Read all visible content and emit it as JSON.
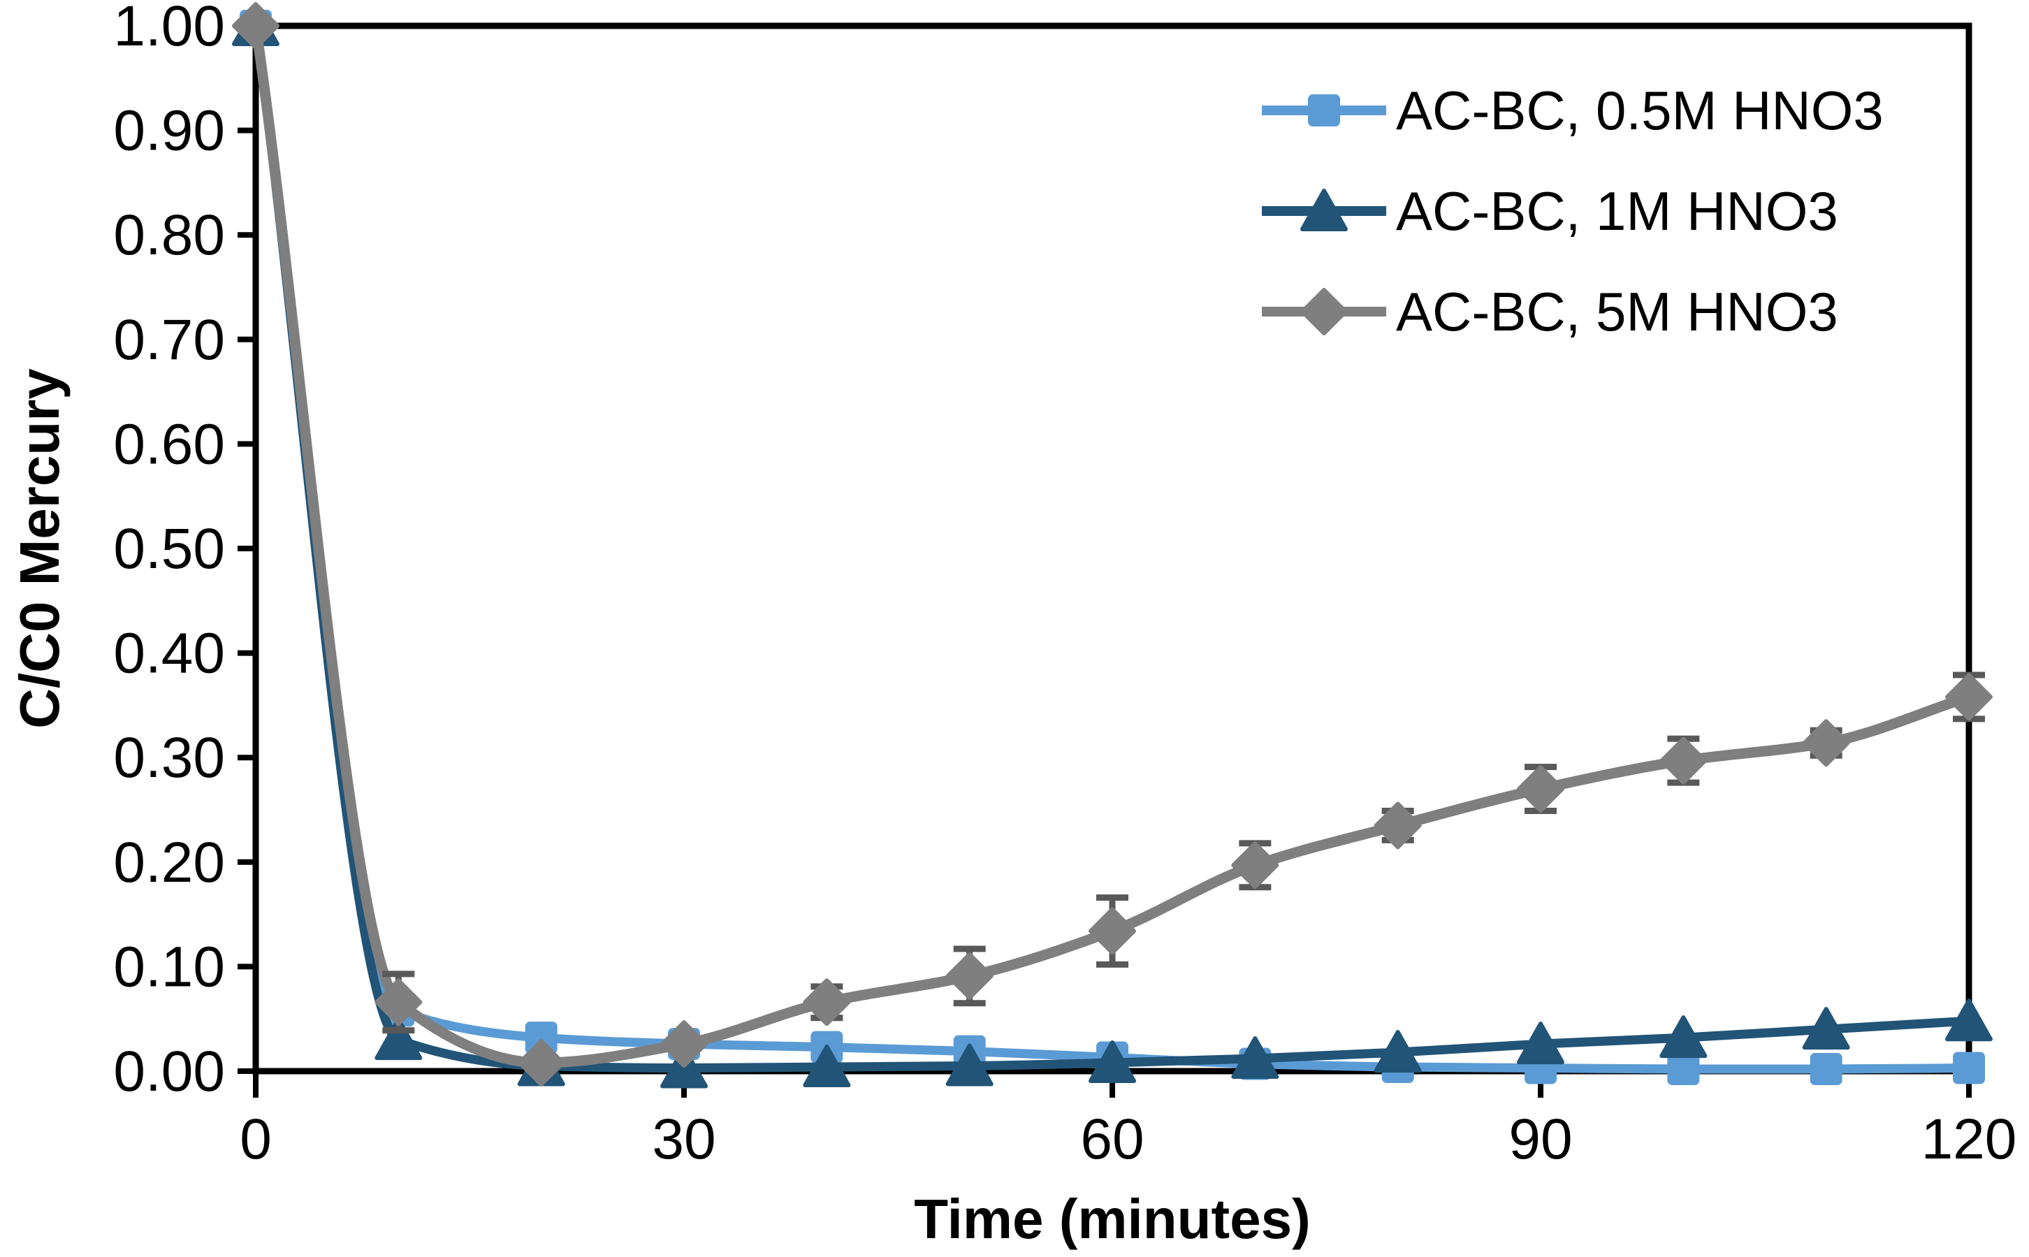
{
  "chart_data": {
    "type": "line",
    "title": "",
    "xlabel": "Time (minutes)",
    "ylabel": "C/C0 Mercury",
    "xlim": [
      0,
      120
    ],
    "ylim": [
      0.0,
      1.0
    ],
    "x_ticks": [
      0,
      30,
      60,
      90,
      120
    ],
    "y_ticks": [
      "1.00",
      "0.90",
      "0.80",
      "0.70",
      "0.60",
      "0.50",
      "0.40",
      "0.30",
      "0.20",
      "0.10",
      "0.00"
    ],
    "grid": "off",
    "legend_position": "top-right-inside",
    "line_style": "smoothed",
    "x": [
      0,
      10,
      20,
      30,
      40,
      50,
      60,
      70,
      80,
      90,
      100,
      110,
      120
    ],
    "series": [
      {
        "name": "AC-BC, 0.5M HNO3",
        "color": "#5B9BD5",
        "marker": "square",
        "values": [
          1.0,
          0.058,
          0.032,
          0.026,
          0.023,
          0.019,
          0.013,
          0.007,
          0.004,
          0.003,
          0.002,
          0.002,
          0.003
        ]
      },
      {
        "name": "AC-BC, 1M HNO3",
        "color": "#215477",
        "marker": "triangle",
        "values": [
          1.0,
          0.03,
          0.005,
          0.003,
          0.004,
          0.005,
          0.008,
          0.012,
          0.018,
          0.026,
          0.032,
          0.04,
          0.048
        ]
      },
      {
        "name": "AC-BC, 5M HNO3",
        "color": "#7F7F7F",
        "marker": "diamond",
        "values": [
          1.0,
          0.066,
          0.008,
          0.026,
          0.066,
          0.091,
          0.134,
          0.197,
          0.235,
          0.27,
          0.297,
          0.314,
          0.358
        ],
        "error_bars": [
          0,
          0.027,
          0.003,
          0.004,
          0.015,
          0.026,
          0.032,
          0.021,
          0.014,
          0.021,
          0.021,
          0.012,
          0.021
        ],
        "error_color": "#595959"
      }
    ]
  }
}
